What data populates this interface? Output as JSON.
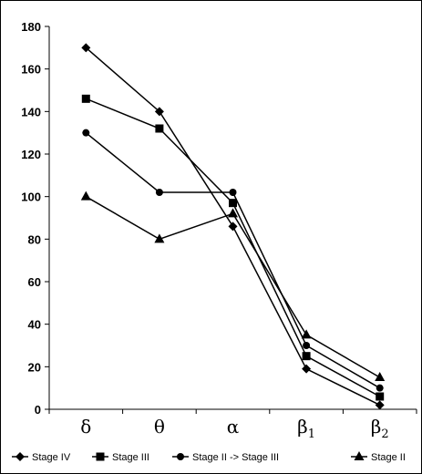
{
  "chart_data": {
    "type": "line",
    "title": "",
    "xlabel": "",
    "ylabel": "",
    "categories": [
      {
        "main": "δ",
        "sub": ""
      },
      {
        "main": "θ",
        "sub": ""
      },
      {
        "main": "α",
        "sub": ""
      },
      {
        "main": "β",
        "sub": "1"
      },
      {
        "main": "β",
        "sub": "2"
      }
    ],
    "ylim": [
      0,
      180
    ],
    "yticks": [
      0,
      20,
      40,
      60,
      80,
      100,
      120,
      140,
      160,
      180
    ],
    "grid": false,
    "legend_position": "bottom",
    "series": [
      {
        "name": "Stage IV",
        "marker": "diamond",
        "values": [
          170,
          140,
          86,
          19,
          2
        ]
      },
      {
        "name": "Stage III",
        "marker": "square",
        "values": [
          146,
          132,
          97,
          25,
          6
        ]
      },
      {
        "name": "Stage II -> Stage III",
        "marker": "circle",
        "values": [
          130,
          102,
          102,
          30,
          10
        ]
      },
      {
        "name": "Stage II",
        "marker": "triangle",
        "values": [
          100,
          80,
          92,
          35,
          15
        ]
      }
    ],
    "colors": {
      "line": "#000000",
      "background": "#ffffff"
    }
  }
}
